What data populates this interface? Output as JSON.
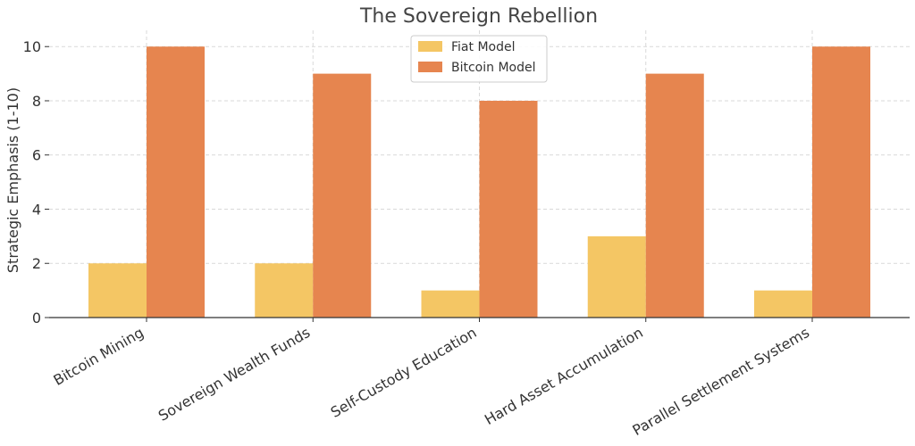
{
  "chart_data": {
    "type": "bar",
    "title": "The Sovereign Rebellion",
    "xlabel": "",
    "ylabel": "Strategic Emphasis (1-10)",
    "ylim": [
      0,
      10.6
    ],
    "yticks": [
      0,
      2,
      4,
      6,
      8,
      10
    ],
    "grid": true,
    "legend_position": "top-center",
    "categories": [
      "Bitcoin Mining",
      "Sovereign Wealth Funds",
      "Self-Custody Education",
      "Hard Asset Accumulation",
      "Parallel Settlement Systems"
    ],
    "series": [
      {
        "name": "Fiat Model",
        "color": "#F4C664",
        "values": [
          2,
          2,
          1,
          3,
          1
        ]
      },
      {
        "name": "Bitcoin Model",
        "color": "#E6854F",
        "values": [
          10,
          9,
          8,
          9,
          10
        ]
      }
    ]
  }
}
